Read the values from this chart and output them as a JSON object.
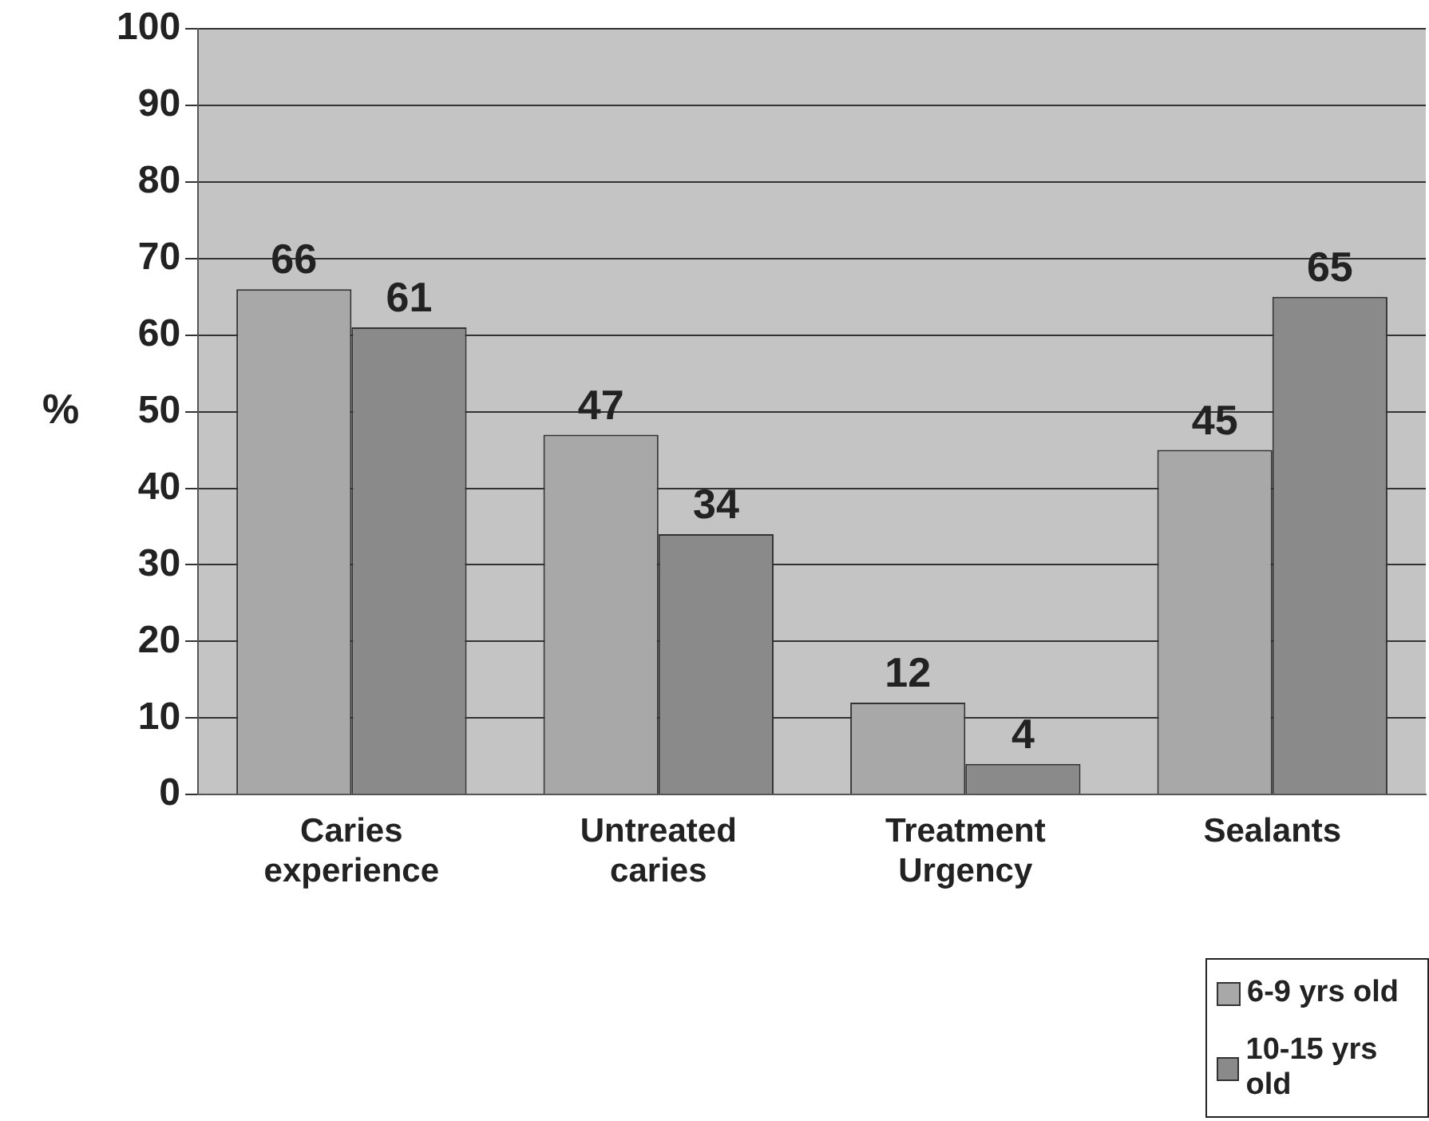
{
  "chart_data": {
    "type": "bar",
    "ylabel": "%",
    "categories": [
      "Caries experience",
      "Untreated caries",
      "Treatment Urgency",
      "Sealants"
    ],
    "series": [
      {
        "name": "6-9 yrs old",
        "color": "#a8a8a8",
        "values": [
          66,
          47,
          12,
          45
        ]
      },
      {
        "name": "10-15 yrs old",
        "color": "#8a8a8a",
        "values": [
          61,
          34,
          4,
          65
        ]
      }
    ],
    "ylim": [
      0,
      100
    ],
    "yticks": [
      0,
      10,
      20,
      30,
      40,
      50,
      60,
      70,
      80,
      90,
      100
    ],
    "grid": "y",
    "legend": "bottom right",
    "data_labels": true
  }
}
